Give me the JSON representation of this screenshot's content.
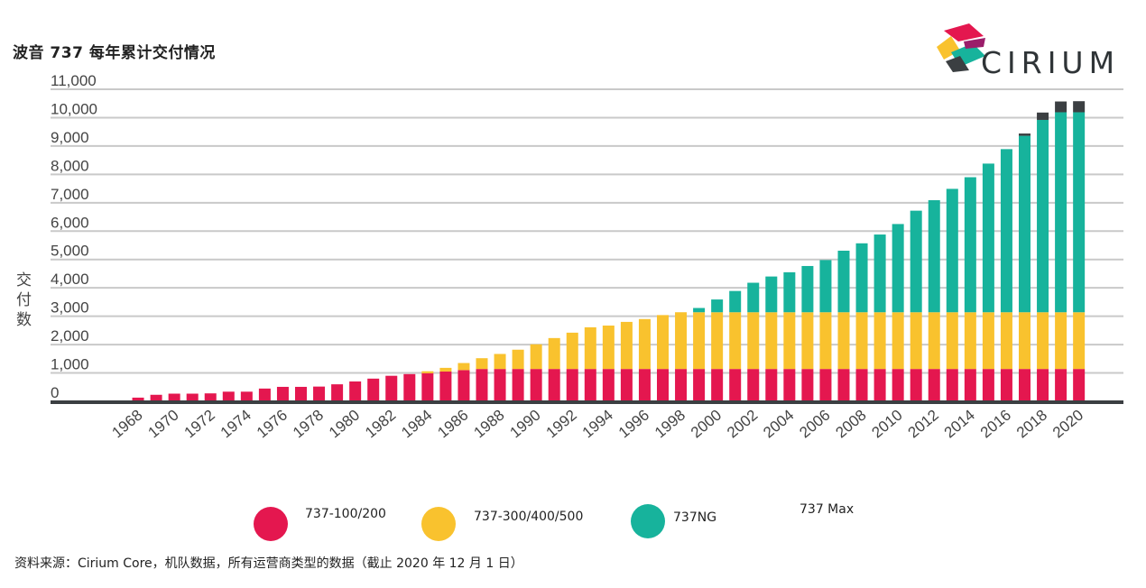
{
  "title": "波音 737 每年累计交付情况",
  "logo_text": "CIRIUM",
  "source": "资料来源：Cirium Core，机队数据，所有运营商类型的数据（截止 2020 年 12 月 1 日）",
  "legend": [
    {
      "label": "737-100/200",
      "color": "#e4174f"
    },
    {
      "label": "737-300/400/500",
      "color": "#f9c22e"
    },
    {
      "label": "737NG",
      "color": "#17b39c"
    },
    {
      "label": "737 Max",
      "color": "#3b3f42"
    }
  ],
  "chart_data": {
    "type": "bar",
    "stacked": true,
    "ylabel": "交付数",
    "xlabel": "",
    "ylim": [
      0,
      11000
    ],
    "yticks": [
      "0",
      "1,000",
      "2,000",
      "3,000",
      "4,000",
      "5,000",
      "6,000",
      "7,000",
      "8,000",
      "9,000",
      "10,000",
      "11,000"
    ],
    "grid": true,
    "x_tick_labels": [
      "1968",
      "1970",
      "1972",
      "1974",
      "1976",
      "1978",
      "1980",
      "1982",
      "1984",
      "1986",
      "1988",
      "1990",
      "1992",
      "1994",
      "1996",
      "1998",
      "2000",
      "2002",
      "2004",
      "2006",
      "2008",
      "2010",
      "2012",
      "2014",
      "2016",
      "2018",
      "2020"
    ],
    "categories": [
      1967,
      1968,
      1969,
      1970,
      1971,
      1972,
      1973,
      1974,
      1975,
      1976,
      1977,
      1978,
      1979,
      1980,
      1981,
      1982,
      1983,
      1984,
      1985,
      1986,
      1987,
      1988,
      1989,
      1990,
      1991,
      1992,
      1993,
      1994,
      1995,
      1996,
      1997,
      1998,
      1999,
      2000,
      2001,
      2002,
      2003,
      2004,
      2005,
      2006,
      2007,
      2008,
      2009,
      2010,
      2011,
      2012,
      2013,
      2014,
      2015,
      2016,
      2017,
      2018,
      2019,
      2020
    ],
    "series": [
      {
        "name": "737-100/200",
        "color": "#e4174f",
        "values": [
          0,
          130,
          230,
          270,
          270,
          280,
          340,
          340,
          450,
          510,
          510,
          520,
          600,
          700,
          800,
          900,
          960,
          990,
          1050,
          1100,
          1140,
          1140,
          1140,
          1140,
          1140,
          1140,
          1140,
          1140,
          1140,
          1140,
          1140,
          1140,
          1140,
          1140,
          1140,
          1140,
          1140,
          1140,
          1140,
          1140,
          1140,
          1140,
          1140,
          1140,
          1140,
          1140,
          1140,
          1140,
          1140,
          1140,
          1140,
          1140,
          1140,
          1140
        ]
      },
      {
        "name": "737-300/400/500",
        "color": "#f9c22e",
        "values": [
          0,
          0,
          0,
          0,
          0,
          0,
          0,
          0,
          0,
          0,
          0,
          0,
          0,
          0,
          0,
          0,
          0,
          70,
          130,
          250,
          380,
          530,
          680,
          870,
          1090,
          1280,
          1470,
          1530,
          1660,
          1760,
          1900,
          2000,
          2000,
          2000,
          2000,
          2000,
          2000,
          2000,
          2000,
          2000,
          2000,
          2000,
          2000,
          2000,
          2000,
          2000,
          2000,
          2000,
          2000,
          2000,
          2000,
          2000,
          2000,
          2000
        ]
      },
      {
        "name": "737NG",
        "color": "#17b39c",
        "values": [
          0,
          0,
          0,
          0,
          0,
          0,
          0,
          0,
          0,
          0,
          0,
          0,
          0,
          0,
          0,
          0,
          0,
          0,
          0,
          0,
          0,
          0,
          0,
          0,
          0,
          0,
          0,
          0,
          0,
          0,
          0,
          0,
          150,
          450,
          750,
          1040,
          1260,
          1410,
          1630,
          1840,
          2170,
          2430,
          2740,
          3110,
          3580,
          3950,
          4350,
          4760,
          5240,
          5750,
          6220,
          6780,
          7050,
          7050
        ]
      },
      {
        "name": "737 Max",
        "color": "#3b3f42",
        "values": [
          0,
          0,
          0,
          0,
          0,
          0,
          0,
          0,
          0,
          0,
          0,
          0,
          0,
          0,
          0,
          0,
          0,
          0,
          0,
          0,
          0,
          0,
          0,
          0,
          0,
          0,
          0,
          0,
          0,
          0,
          0,
          0,
          0,
          0,
          0,
          0,
          0,
          0,
          0,
          0,
          0,
          0,
          0,
          0,
          0,
          0,
          0,
          0,
          0,
          0,
          80,
          260,
          380,
          390
        ]
      }
    ]
  }
}
